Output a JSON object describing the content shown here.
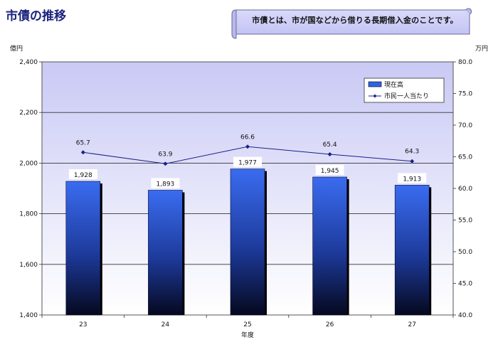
{
  "page": {
    "title": "市債の推移",
    "note": "市債とは、市が国などから借りる長期借入金のことです。"
  },
  "chart_data": {
    "type": "bar",
    "categories": [
      "23",
      "24",
      "25",
      "26",
      "27"
    ],
    "xlabel": "年度",
    "ylabel_left": "億円",
    "ylabel_right": "万円",
    "ylim_left": [
      1400,
      2400
    ],
    "yticks_left": [
      "1,400",
      "1,600",
      "1,800",
      "2,000",
      "2,200",
      "2,400"
    ],
    "ylim_right": [
      40,
      80
    ],
    "yticks_right": [
      "40.0",
      "45.0",
      "50.0",
      "55.0",
      "60.0",
      "65.0",
      "70.0",
      "75.0",
      "80.0"
    ],
    "grid": true,
    "legend_position": "top-right",
    "series": [
      {
        "name": "現在高",
        "type": "bar",
        "axis": "left",
        "values": [
          1928,
          1893,
          1977,
          1945,
          1913
        ],
        "labels": [
          "1,928",
          "1,893",
          "1,977",
          "1,945",
          "1,913"
        ],
        "color": "#2f63e6"
      },
      {
        "name": "市民一人当たり",
        "type": "line",
        "axis": "right",
        "values": [
          65.7,
          63.9,
          66.6,
          65.4,
          64.3
        ],
        "labels": [
          "65.7",
          "63.9",
          "66.6",
          "65.4",
          "64.3"
        ],
        "color": "#1a1f8a"
      }
    ]
  }
}
